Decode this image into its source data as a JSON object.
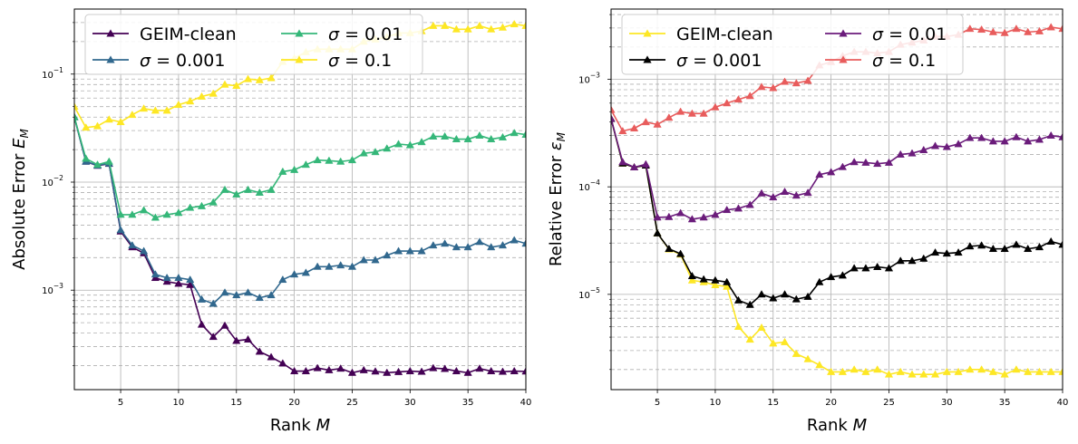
{
  "chart_data": [
    {
      "type": "line",
      "ylabel": "Absolute Error $E_M$",
      "ylabel_text": "Absolute Error E",
      "ylabel_sub": "M",
      "xlabel_text": "Rank ",
      "xlabel_var": "M",
      "yscale": "log",
      "xlim": [
        1,
        40
      ],
      "ylim": [
        0.00012,
        0.4
      ],
      "x_ticks": [
        5,
        10,
        15,
        20,
        25,
        30,
        35,
        40
      ],
      "y_ticks": [
        {
          "value": 0.001,
          "base": "10",
          "exp": "−3"
        },
        {
          "value": 0.01,
          "base": "10",
          "exp": "−2"
        },
        {
          "value": 0.1,
          "base": "10",
          "exp": "−1"
        }
      ],
      "grid": true,
      "legend_position": "upper-left",
      "legend_columns": 2,
      "x": [
        1,
        2,
        3,
        4,
        5,
        6,
        7,
        8,
        9,
        10,
        11,
        12,
        13,
        14,
        15,
        16,
        17,
        18,
        19,
        20,
        21,
        22,
        23,
        24,
        25,
        26,
        27,
        28,
        29,
        30,
        31,
        32,
        33,
        34,
        35,
        36,
        37,
        38,
        39,
        40
      ],
      "series": [
        {
          "name": "GEIM-clean",
          "name_display": "GEIM-clean",
          "color": "#440154",
          "values": [
            0.04,
            0.0155,
            0.0142,
            0.0148,
            0.0035,
            0.0025,
            0.0022,
            0.0013,
            0.0012,
            0.00115,
            0.00112,
            0.00048,
            0.00037,
            0.00047,
            0.00034,
            0.00035,
            0.00027,
            0.00024,
            0.00021,
            0.000178,
            0.000178,
            0.00019,
            0.000182,
            0.000188,
            0.000172,
            0.000182,
            0.000177,
            0.000172,
            0.000175,
            0.000178,
            0.000176,
            0.00019,
            0.000187,
            0.000178,
            0.000172,
            0.000188,
            0.000178,
            0.000176,
            0.000178,
            0.000177
          ]
        },
        {
          "name": "σ = 0.001",
          "name_display": "σ = 0.001",
          "color": "#31688e",
          "values": [
            0.04,
            0.0155,
            0.0143,
            0.0149,
            0.0036,
            0.0026,
            0.0023,
            0.0014,
            0.0013,
            0.0013,
            0.00125,
            0.00082,
            0.00075,
            0.00095,
            0.0009,
            0.00095,
            0.00085,
            0.0009,
            0.00125,
            0.0014,
            0.00145,
            0.00165,
            0.00165,
            0.0017,
            0.00165,
            0.0019,
            0.0019,
            0.0021,
            0.0023,
            0.0023,
            0.0023,
            0.0026,
            0.0027,
            0.0025,
            0.0025,
            0.0028,
            0.0025,
            0.0026,
            0.0029,
            0.0027
          ]
        },
        {
          "name": "σ = 0.01",
          "name_display": "σ = 0.01",
          "color": "#35b779",
          "values": [
            0.04,
            0.0165,
            0.0145,
            0.0155,
            0.005,
            0.005,
            0.0055,
            0.0047,
            0.005,
            0.0052,
            0.0058,
            0.006,
            0.0065,
            0.0085,
            0.0077,
            0.0085,
            0.008,
            0.0085,
            0.0125,
            0.013,
            0.0145,
            0.016,
            0.0158,
            0.0155,
            0.016,
            0.0185,
            0.019,
            0.0205,
            0.0225,
            0.022,
            0.0235,
            0.0265,
            0.0265,
            0.025,
            0.025,
            0.027,
            0.025,
            0.026,
            0.0285,
            0.0275
          ]
        },
        {
          "name": "σ = 0.1",
          "name_display": "σ = 0.1",
          "color": "#fde725",
          "values": [
            0.05,
            0.032,
            0.033,
            0.038,
            0.036,
            0.042,
            0.048,
            0.046,
            0.046,
            0.052,
            0.056,
            0.062,
            0.066,
            0.08,
            0.078,
            0.09,
            0.088,
            0.092,
            0.13,
            0.14,
            0.16,
            0.17,
            0.17,
            0.17,
            0.17,
            0.2,
            0.21,
            0.22,
            0.24,
            0.24,
            0.25,
            0.28,
            0.28,
            0.26,
            0.26,
            0.28,
            0.26,
            0.27,
            0.29,
            0.28
          ]
        }
      ]
    },
    {
      "type": "line",
      "ylabel": "Relative Error $\\varepsilon_M$",
      "ylabel_text": "Relative Error ε",
      "ylabel_sub": "M",
      "xlabel_text": "Rank ",
      "xlabel_var": "M",
      "yscale": "log",
      "xlim": [
        1,
        40
      ],
      "ylim": [
        1.3e-06,
        0.0045
      ],
      "x_ticks": [
        5,
        10,
        15,
        20,
        25,
        30,
        35,
        40
      ],
      "y_ticks": [
        {
          "value": 1e-05,
          "base": "10",
          "exp": "−5"
        },
        {
          "value": 0.0001,
          "base": "10",
          "exp": "−4"
        },
        {
          "value": 0.001,
          "base": "10",
          "exp": "−3"
        }
      ],
      "grid": true,
      "legend_position": "upper-left",
      "legend_columns": 2,
      "x": [
        1,
        2,
        3,
        4,
        5,
        6,
        7,
        8,
        9,
        10,
        11,
        12,
        13,
        14,
        15,
        16,
        17,
        18,
        19,
        20,
        21,
        22,
        23,
        24,
        25,
        26,
        27,
        28,
        29,
        30,
        31,
        32,
        33,
        34,
        35,
        36,
        37,
        38,
        39,
        40
      ],
      "series": [
        {
          "name": "GEIM-clean",
          "name_display": "GEIM-clean",
          "color": "#fde725",
          "values": [
            0.00043,
            0.000165,
            0.000152,
            0.000158,
            3.7e-05,
            2.62e-05,
            2.35e-05,
            1.35e-05,
            1.3e-05,
            1.22e-05,
            1.18e-05,
            5e-06,
            3.8e-06,
            4.9e-06,
            3.5e-06,
            3.6e-06,
            2.8e-06,
            2.5e-06,
            2.2e-06,
            1.9e-06,
            1.9e-06,
            2e-06,
            1.9e-06,
            2e-06,
            1.8e-06,
            1.9e-06,
            1.8e-06,
            1.8e-06,
            1.8e-06,
            1.9e-06,
            1.9e-06,
            2e-06,
            2e-06,
            1.9e-06,
            1.8e-06,
            2e-06,
            1.9e-06,
            1.9e-06,
            1.9e-06,
            1.9e-06
          ]
        },
        {
          "name": "σ = 0.001",
          "name_display": "σ = 0.001",
          "color": "#000000",
          "values": [
            0.00043,
            0.000165,
            0.000152,
            0.000158,
            3.7e-05,
            2.65e-05,
            2.38e-05,
            1.48e-05,
            1.38e-05,
            1.35e-05,
            1.3e-05,
            8.8e-06,
            8e-06,
            1e-05,
            9.2e-06,
            1e-05,
            9e-06,
            9.5e-06,
            1.3e-05,
            1.45e-05,
            1.5e-05,
            1.75e-05,
            1.75e-05,
            1.8e-05,
            1.75e-05,
            2.05e-05,
            2.05e-05,
            2.15e-05,
            2.45e-05,
            2.4e-05,
            2.45e-05,
            2.8e-05,
            2.85e-05,
            2.65e-05,
            2.65e-05,
            2.9e-05,
            2.65e-05,
            2.75e-05,
            3.1e-05,
            2.9e-05
          ]
        },
        {
          "name": "σ = 0.01",
          "name_display": "σ = 0.01",
          "color": "#6b1c7b",
          "values": [
            0.00043,
            0.00017,
            0.000152,
            0.000162,
            5.2e-05,
            5.25e-05,
            5.7e-05,
            5e-05,
            5.2e-05,
            5.5e-05,
            6.1e-05,
            6.3e-05,
            6.8e-05,
            8.7e-05,
            8e-05,
            9e-05,
            8.3e-05,
            8.8e-05,
            0.00013,
            0.000137,
            0.000153,
            0.00017,
            0.000168,
            0.000164,
            0.000168,
            0.0002,
            0.000205,
            0.00022,
            0.00024,
            0.000235,
            0.00025,
            0.000285,
            0.000285,
            0.000265,
            0.000265,
            0.00029,
            0.000265,
            0.000275,
            0.0003,
            0.00029
          ]
        },
        {
          "name": "σ = 0.1",
          "name_display": "σ = 0.1",
          "color": "#e85c5c",
          "values": [
            0.00052,
            0.00033,
            0.00035,
            0.0004,
            0.00038,
            0.00044,
            0.0005,
            0.00048,
            0.00048,
            0.00055,
            0.0006,
            0.00065,
            0.0007,
            0.00085,
            0.00083,
            0.00095,
            0.00092,
            0.00097,
            0.00135,
            0.00145,
            0.00165,
            0.0018,
            0.0018,
            0.00175,
            0.0018,
            0.0021,
            0.0022,
            0.0023,
            0.0025,
            0.0025,
            0.0026,
            0.00295,
            0.0029,
            0.00275,
            0.0027,
            0.00295,
            0.00275,
            0.0028,
            0.00305,
            0.00295
          ]
        }
      ]
    }
  ]
}
